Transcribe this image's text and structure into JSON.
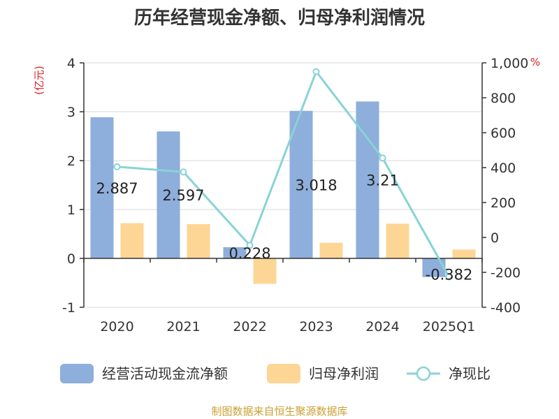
{
  "chart_data": {
    "type": "bar",
    "title": "历年经营现金净额、归母净利润情况",
    "categories": [
      "2020",
      "2021",
      "2022",
      "2023",
      "2024",
      "2025Q1"
    ],
    "y_left": {
      "unit": "(亿元)",
      "ylim": [
        -1,
        4
      ],
      "ticks": [
        "4",
        "3",
        "2",
        "1",
        "0",
        "-1"
      ]
    },
    "y_right": {
      "unit": "%",
      "ylim": [
        -400,
        1000
      ],
      "ticks": [
        "1,000",
        "800",
        "600",
        "400",
        "200",
        "0",
        "-200",
        "-400"
      ]
    },
    "series": [
      {
        "name": "经营活动现金流净额",
        "type": "bar",
        "axis": "left",
        "color": "#8eaedb",
        "values": [
          2.887,
          2.597,
          0.228,
          3.018,
          3.21,
          -0.382
        ],
        "labels": [
          "2.887",
          "2.597",
          "0.228",
          "3.018",
          "3.21",
          "-0.382"
        ]
      },
      {
        "name": "归母净利润",
        "type": "bar",
        "axis": "left",
        "color": "#fdd594",
        "values": [
          0.72,
          0.7,
          -0.52,
          0.32,
          0.71,
          0.18
        ]
      },
      {
        "name": "净现比",
        "type": "line",
        "axis": "right",
        "color": "#88d3d6",
        "values": [
          405,
          375,
          -45,
          950,
          455,
          -225
        ]
      }
    ],
    "grid": true,
    "legend": "bottom"
  },
  "source": "制图数据来自恒生聚源数据库",
  "colors": {
    "unit_red": "#e02020",
    "source_gold": "#c9a034",
    "axis": "#333333",
    "grid": "#d8d8d8"
  }
}
